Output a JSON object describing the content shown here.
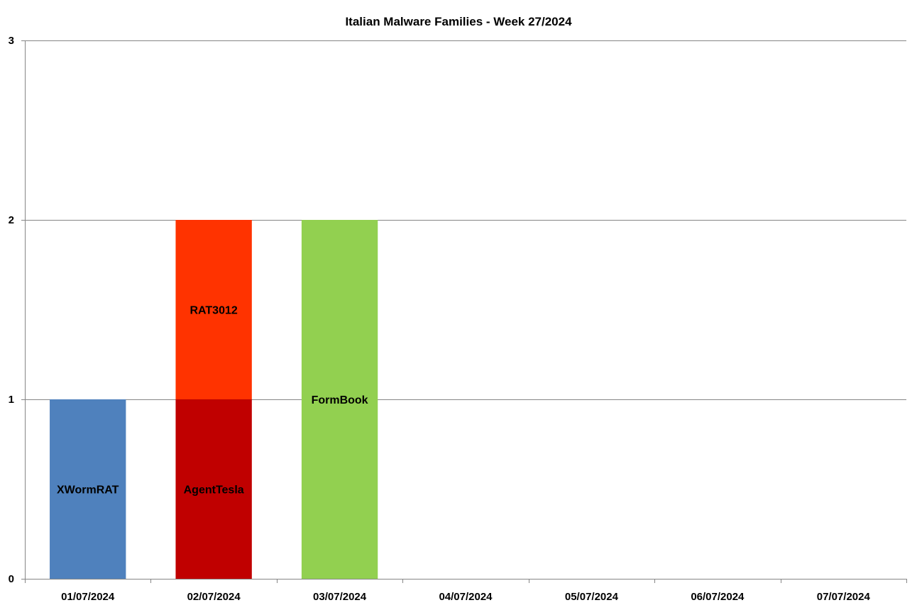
{
  "chart_data": {
    "type": "bar",
    "stacked": true,
    "title": "Italian Malware Families - Week 27/2024",
    "xlabel": "",
    "ylabel": "",
    "ylim": [
      0,
      3
    ],
    "yticks": [
      "0",
      "1",
      "2",
      "3"
    ],
    "grid": true,
    "legend": "none",
    "categories": [
      "01/07/2024",
      "02/07/2024",
      "03/07/2024",
      "04/07/2024",
      "05/07/2024",
      "06/07/2024",
      "07/07/2024"
    ],
    "series": [
      {
        "name": "XWormRAT",
        "color": "#4F81BD",
        "values": [
          1,
          0,
          0,
          0,
          0,
          0,
          0
        ]
      },
      {
        "name": "AgentTesla",
        "color": "#C00000",
        "values": [
          0,
          1,
          0,
          0,
          0,
          0,
          0
        ]
      },
      {
        "name": "RAT3012",
        "color": "#FF3300",
        "values": [
          0,
          1,
          0,
          0,
          0,
          0,
          0
        ]
      },
      {
        "name": "FormBook",
        "color": "#92D050",
        "values": [
          0,
          0,
          2,
          0,
          0,
          0,
          0
        ]
      }
    ]
  }
}
